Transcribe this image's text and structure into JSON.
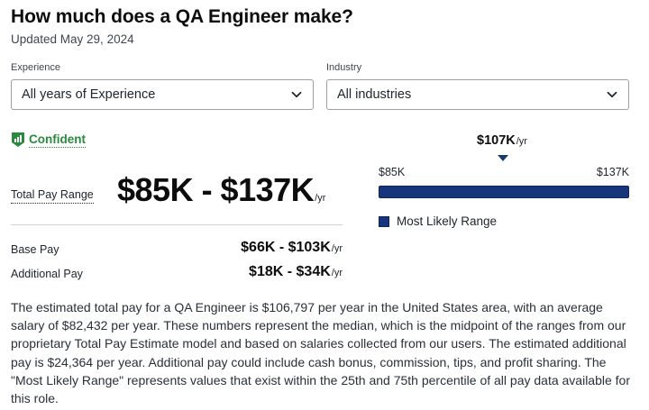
{
  "header": {
    "title": "How much does a QA Engineer make?",
    "updated": "Updated May 29, 2024"
  },
  "filters": {
    "experience": {
      "label": "Experience",
      "value": "All years of Experience"
    },
    "industry": {
      "label": "Industry",
      "value": "All industries"
    }
  },
  "confidence": {
    "label": "Confident",
    "icon": "bar-chart-shield-icon",
    "color": "#2a8a3e"
  },
  "total_pay": {
    "label": "Total Pay Range",
    "value": "$85K - $137K",
    "unit": "/yr"
  },
  "base_pay": {
    "label": "Base Pay",
    "value": "$66K - $103K",
    "unit": "/yr"
  },
  "additional_pay": {
    "label": "Additional Pay",
    "value": "$18K - $34K",
    "unit": "/yr"
  },
  "range_chart": {
    "median": "$107K",
    "median_unit": "/yr",
    "min_label": "$85K",
    "max_label": "$137K",
    "legend_label": "Most Likely Range",
    "bar_color": "#17357a"
  },
  "description": "The estimated total pay for a QA Engineer is $106,797 per year in the United States area, with an average salary of $82,432 per year. These numbers represent the median, which is the midpoint of the ranges from our proprietary Total Pay Estimate model and based on salaries collected from our users. The estimated additional pay is $24,364 per year. Additional pay could include cash bonus, commission, tips, and profit sharing. The \"Most Likely Range\" represents values that exist within the 25th and 75th percentile of all pay data available for this role."
}
